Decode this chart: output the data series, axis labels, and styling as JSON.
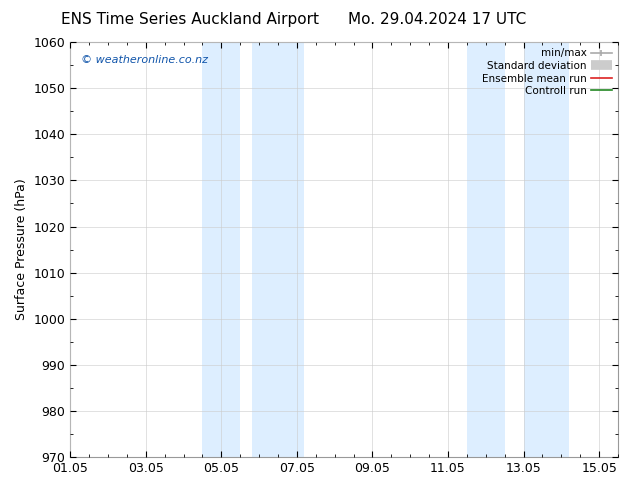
{
  "title_left": "ENS Time Series Auckland Airport",
  "title_right": "Mo. 29.04.2024 17 UTC",
  "ylabel": "Surface Pressure (hPa)",
  "ylim": [
    970,
    1060
  ],
  "yticks": [
    970,
    980,
    990,
    1000,
    1010,
    1020,
    1030,
    1040,
    1050,
    1060
  ],
  "xtick_labels": [
    "01.05",
    "03.05",
    "05.05",
    "07.05",
    "09.05",
    "11.05",
    "13.05",
    "15.05"
  ],
  "xtick_positions": [
    0,
    2,
    4,
    6,
    8,
    10,
    12,
    14
  ],
  "xlim": [
    0,
    14.5
  ],
  "shaded_regions": [
    {
      "start": 3.5,
      "end": 4.5,
      "color": "#ddeeff"
    },
    {
      "start": 4.8,
      "end": 6.2,
      "color": "#ddeeff"
    },
    {
      "start": 10.5,
      "end": 11.5,
      "color": "#ddeeff"
    },
    {
      "start": 12.0,
      "end": 13.2,
      "color": "#ddeeff"
    }
  ],
  "watermark_text": "© weatheronline.co.nz",
  "watermark_color": "#1155aa",
  "background_color": "#ffffff",
  "grid_color": "#cccccc",
  "grid_alpha": 0.7,
  "title_fontsize": 11,
  "ylabel_fontsize": 9,
  "tick_fontsize": 9,
  "minor_tick_interval": 0.5
}
